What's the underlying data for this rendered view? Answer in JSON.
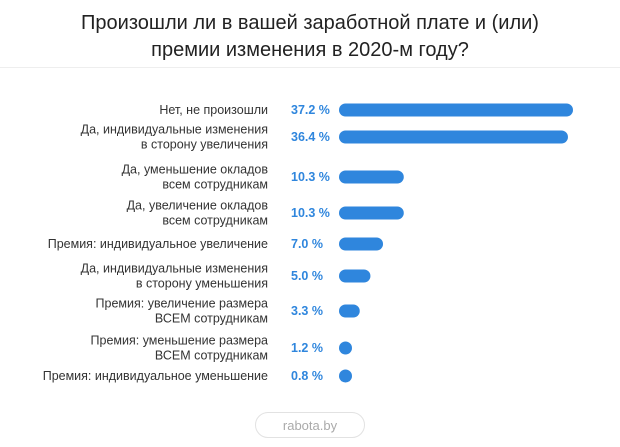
{
  "chart_data": {
    "type": "bar",
    "orientation": "horizontal",
    "title": "Произошли ли в вашей заработной плате и (или) премии изменения в 2020-м году?",
    "title_lines": [
      "Произошли ли в вашей заработной плате и (или)",
      "премии изменения в 2020-м году?"
    ],
    "categories": [
      [
        "Нет, не произошли"
      ],
      [
        "Да, индивидуальные изменения",
        "в сторону увеличения"
      ],
      [
        "Да, уменьшение окладов",
        "всем сотрудникам"
      ],
      [
        "Да, увеличение окладов",
        "всем сотрудникам"
      ],
      [
        "Премия: индивидуальное увеличение"
      ],
      [
        "Да, индивидуальные изменения",
        "в сторону уменьшения"
      ],
      [
        "Премия: увеличение размера",
        "ВСЕМ сотрудникам"
      ],
      [
        "Премия: уменьшение размера",
        "ВСЕМ сотрудникам"
      ],
      [
        "Премия: индивидуальное уменьшение"
      ]
    ],
    "values": [
      37.2,
      36.4,
      10.3,
      10.3,
      7.0,
      5.0,
      3.3,
      1.2,
      0.8
    ],
    "value_labels": [
      "37.2 %",
      "36.4 %",
      "10.3 %",
      "10.3 %",
      "7.0 %",
      "5.0 %",
      "3.3 %",
      "1.2 %",
      "0.8 %"
    ],
    "unit": "%",
    "xlim": [
      0,
      37.2
    ],
    "grid": false,
    "colors": {
      "bar": "#2f86dd",
      "value_label": "#2f86dd",
      "category_label": "#333333",
      "title": "#222222"
    }
  },
  "footer": {
    "source": "rabota.by"
  }
}
